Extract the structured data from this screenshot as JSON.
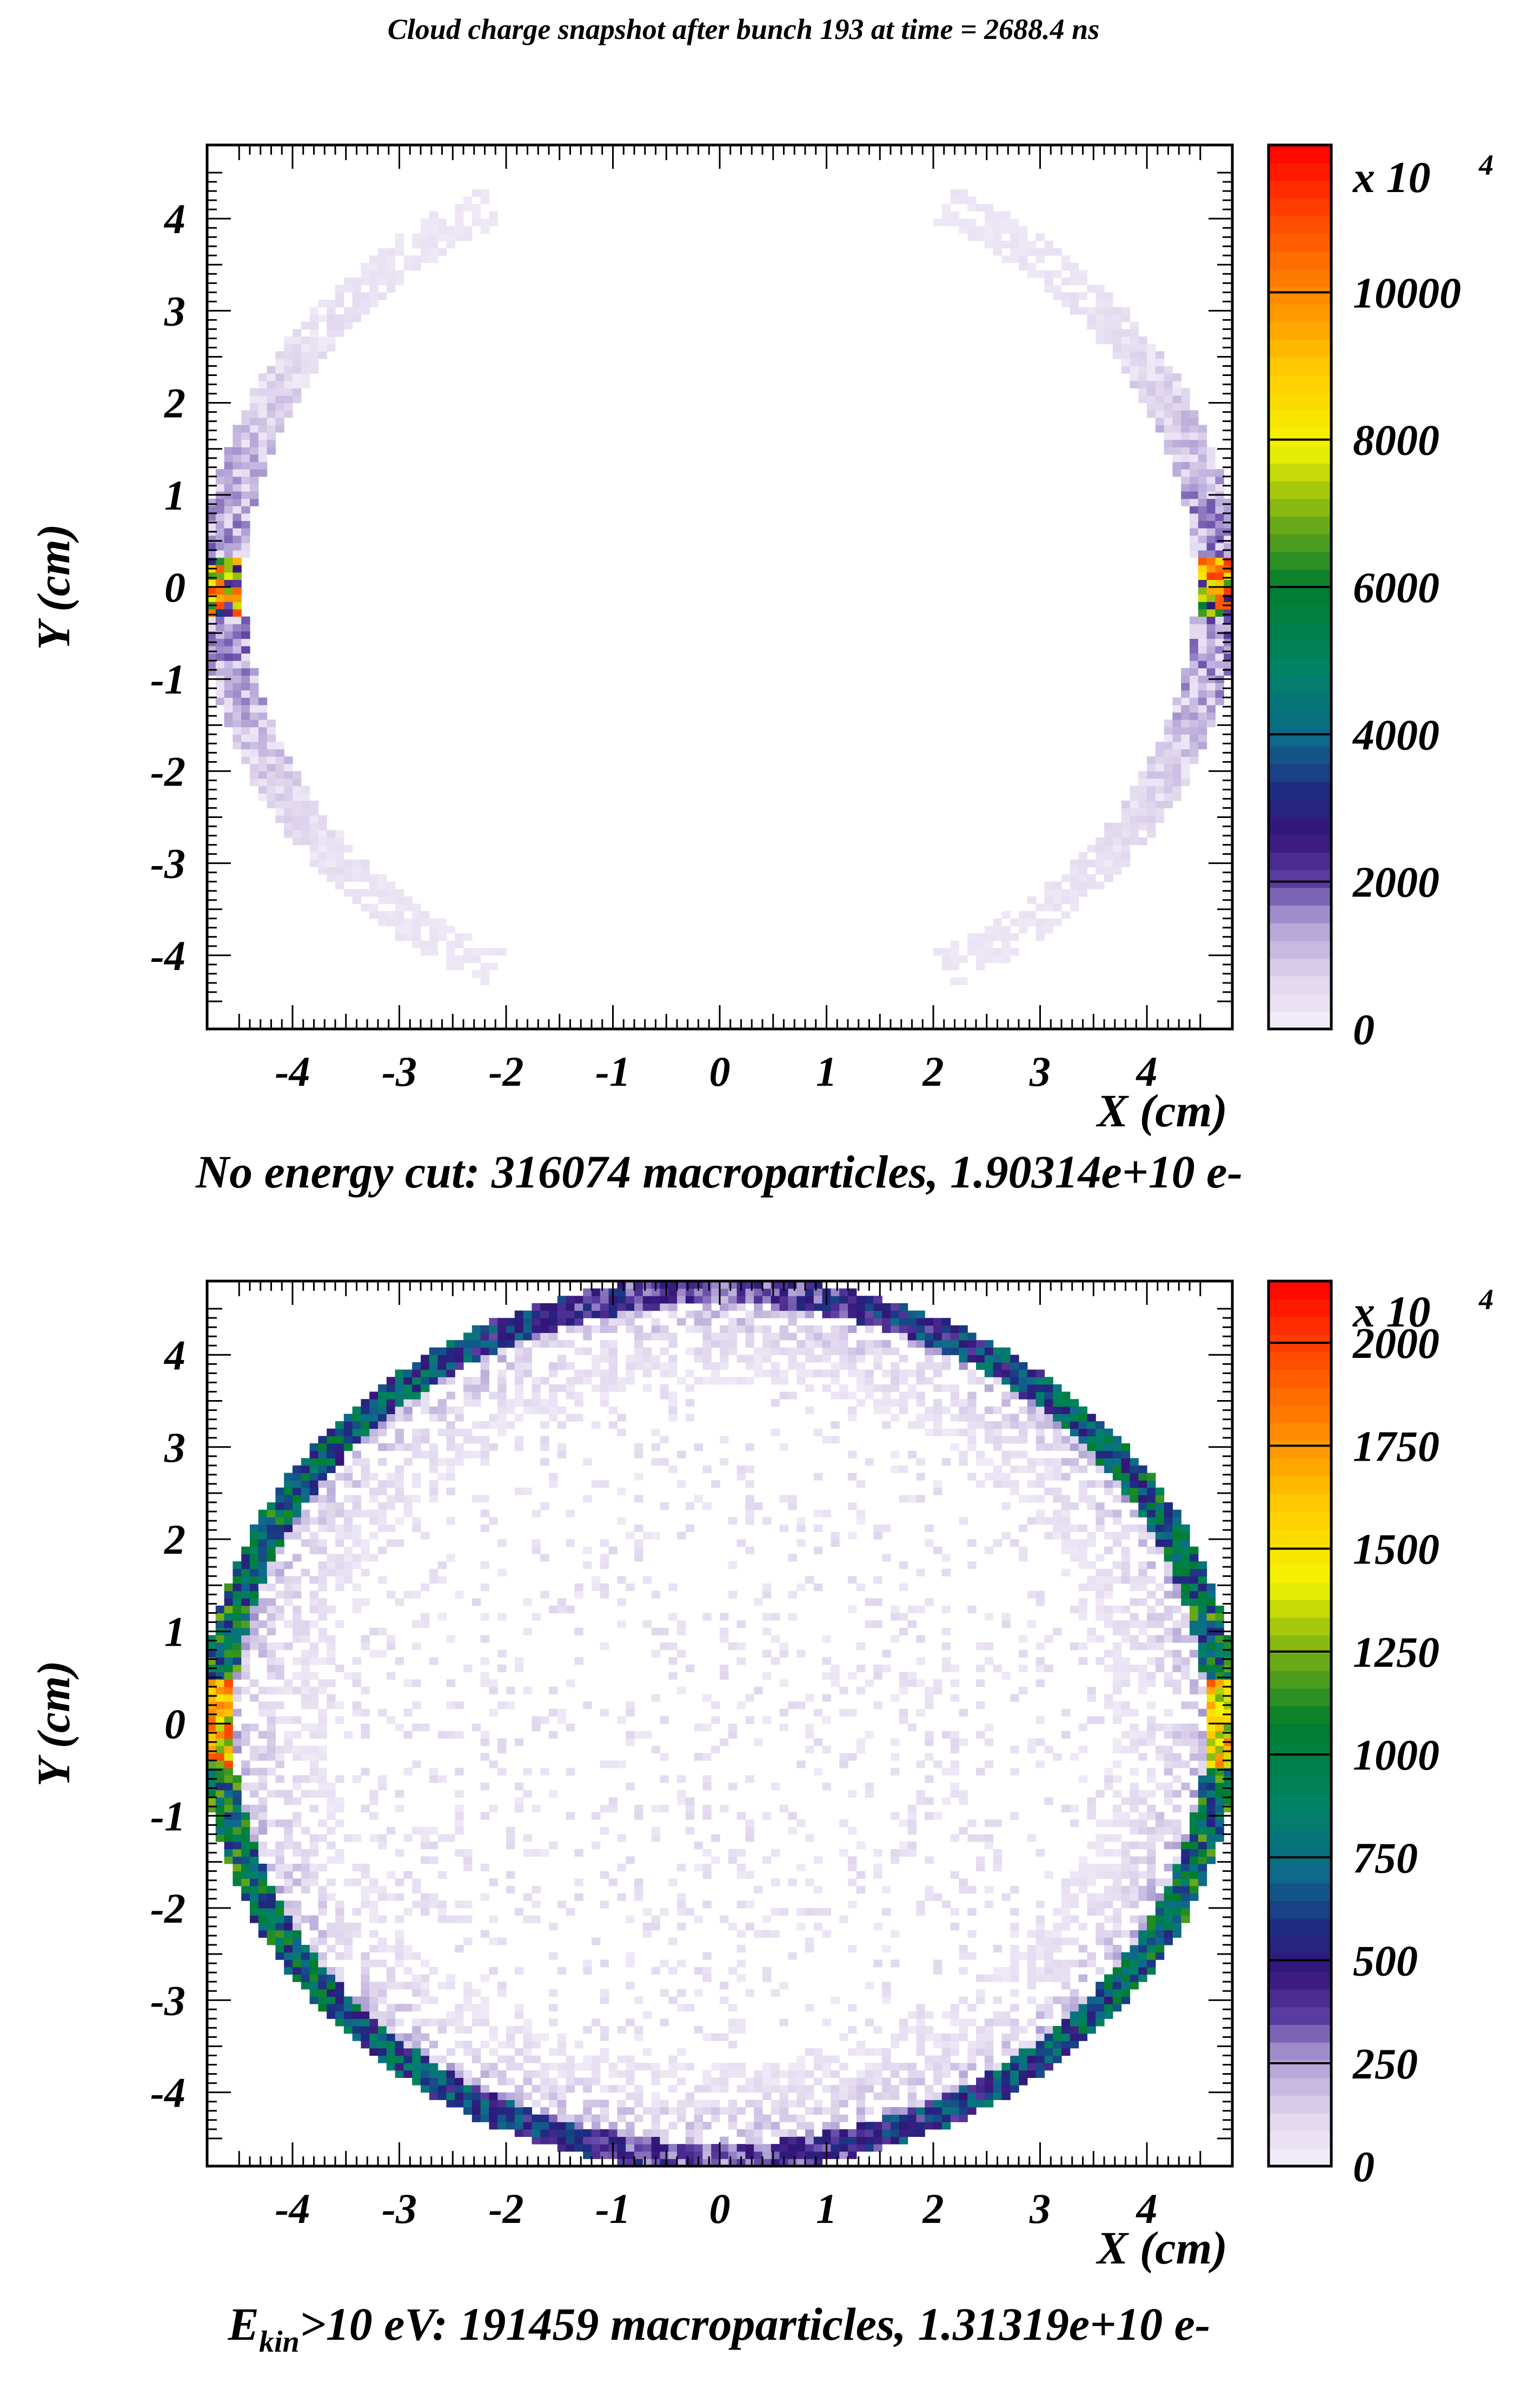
{
  "figure_title": "Cloud charge snapshot after bunch 193 at time = 2688.4 ns",
  "chart_data": [
    {
      "type": "heatmap",
      "title": "Cloud charge snapshot after bunch 193 at time = 2688.4 ns",
      "xlabel": "X (cm)",
      "ylabel": "Y (cm)",
      "xlim": [
        -4.8,
        4.8
      ],
      "ylim": [
        -4.8,
        4.8
      ],
      "x_ticks": [
        "-4",
        "-3",
        "-2",
        "-1",
        "0",
        "1",
        "2",
        "3",
        "4"
      ],
      "y_ticks": [
        "4",
        "3",
        "2",
        "1",
        "0",
        "-1",
        "-2",
        "-3",
        "-4"
      ],
      "caption": "No energy cut: 316074 macroparticles, 1.90314e+10 e-",
      "colorbar": {
        "min": 0,
        "max": 12000,
        "exponent_label": "x 10",
        "exponent_power": "4",
        "tick_values": [
          0,
          2000,
          4000,
          6000,
          8000,
          10000
        ],
        "tick_labels": [
          "0",
          "2000",
          "4000",
          "6000",
          "8000",
          "10000"
        ]
      },
      "distribution": {
        "pattern": "two arcs along the circular wall at left and right, no charge in the interior",
        "wall_radius_cm": 4.8,
        "arc_half_angle_deg": 63,
        "typical_wall_density": 1800,
        "peak_density_at_y0": 11500,
        "interior_density": 0
      }
    },
    {
      "type": "heatmap",
      "xlabel": "X (cm)",
      "ylabel": "Y (cm)",
      "xlim": [
        -4.8,
        4.8
      ],
      "ylim": [
        -4.8,
        4.8
      ],
      "x_ticks": [
        "-4",
        "-3",
        "-2",
        "-1",
        "0",
        "1",
        "2",
        "3",
        "4"
      ],
      "y_ticks": [
        "4",
        "3",
        "2",
        "1",
        "0",
        "-1",
        "-2",
        "-3",
        "-4"
      ],
      "caption_prefix": "E",
      "caption_subscript": "kin",
      "caption_suffix": ">10 eV: 191459 macroparticles, 1.31319e+10  e-",
      "colorbar": {
        "min": 0,
        "max": 2150,
        "exponent_label": "x 10",
        "exponent_power": "4",
        "tick_values": [
          0,
          250,
          500,
          750,
          1000,
          1250,
          1500,
          1750,
          2000
        ],
        "tick_labels": [
          "0",
          "250",
          "500",
          "750",
          "1000",
          "1250",
          "1500",
          "1750",
          "2000"
        ]
      },
      "distribution": {
        "pattern": "full ring along the circular wall, densest at left and right, sparse speckle in the interior",
        "wall_radius_cm": 4.8,
        "typical_wall_density": 900,
        "peak_density_at_y0": 2000,
        "interior_density": 60
      }
    }
  ]
}
